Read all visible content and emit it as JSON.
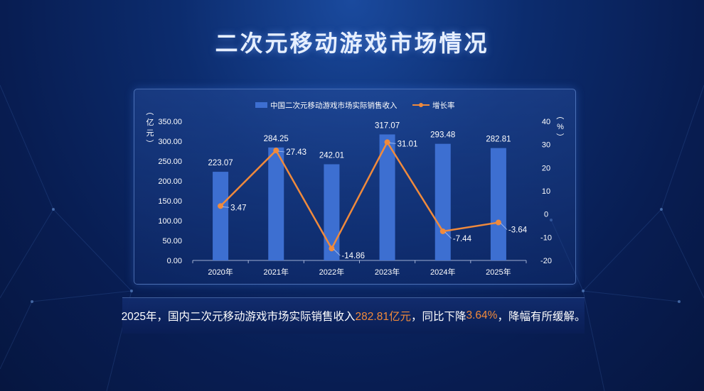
{
  "page": {
    "title": "二次元移动游戏市场情况"
  },
  "caption": {
    "part1": "2025年，国内二次元移动游戏市场实际销售收入",
    "value": "282.81亿元",
    "part2": "，同比下降",
    "rate": "3.64%",
    "part3": "，降幅有所缓解。"
  },
  "colors": {
    "bar": "#3d6fd1",
    "line": "#f08a3c",
    "accent": "#f28a3a"
  },
  "chart_data": {
    "type": "bar+line",
    "categories": [
      "2020年",
      "2021年",
      "2022年",
      "2023年",
      "2024年",
      "2025年"
    ],
    "series": [
      {
        "name": "中国二次元移动游戏市场实际销售收入",
        "type": "bar",
        "axis": "left",
        "values": [
          223.07,
          284.25,
          242.01,
          317.07,
          293.48,
          282.81
        ],
        "labels": [
          "223.07",
          "284.25",
          "242.01",
          "317.07",
          "293.48",
          "282.81"
        ]
      },
      {
        "name": "增长率",
        "type": "line",
        "axis": "right",
        "values": [
          3.47,
          27.43,
          -14.86,
          31.01,
          -7.44,
          -3.64
        ],
        "labels": [
          "3.47",
          "27.43",
          "-14.86",
          "31.01",
          "-7.44",
          "-3.64"
        ]
      }
    ],
    "y_left": {
      "label": "（亿元）",
      "ticks": [
        "0.00",
        "50.00",
        "100.00",
        "150.00",
        "200.00",
        "250.00",
        "300.00",
        "350.00"
      ],
      "min": 0,
      "max": 350
    },
    "y_right": {
      "label": "（%）",
      "ticks": [
        "-20",
        "-10",
        "0",
        "10",
        "20",
        "30",
        "40"
      ],
      "min": -20,
      "max": 40
    },
    "legend_position": "top"
  }
}
